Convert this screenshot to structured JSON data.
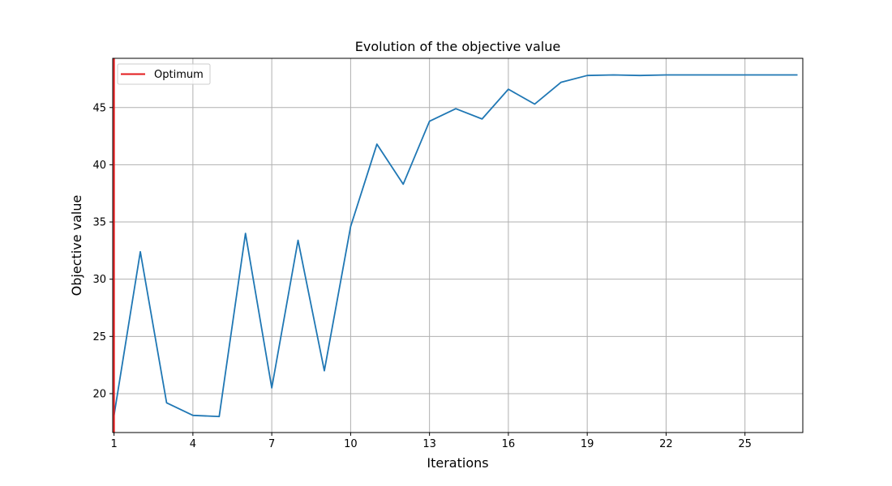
{
  "chart_data": {
    "type": "line",
    "title": "Evolution of the objective value",
    "xlabel": "Iterations",
    "ylabel": "Objective value",
    "xlim": [
      0.95,
      27.2
    ],
    "ylim": [
      16.6,
      49.3
    ],
    "xticks": [
      1,
      4,
      7,
      10,
      13,
      16,
      19,
      22,
      25
    ],
    "yticks": [
      20,
      25,
      30,
      35,
      40,
      45
    ],
    "grid": true,
    "legend_position": "upper-left",
    "series": [
      {
        "name": "",
        "color": "#1f77b4",
        "x": [
          1,
          2,
          3,
          4,
          5,
          6,
          7,
          8,
          9,
          10,
          11,
          12,
          13,
          14,
          15,
          16,
          17,
          18,
          19,
          20,
          21,
          22,
          23,
          24,
          25,
          26,
          27
        ],
        "y": [
          18.1,
          32.4,
          19.2,
          18.1,
          18.0,
          34.0,
          20.5,
          33.4,
          22.0,
          34.6,
          41.8,
          38.3,
          43.8,
          44.9,
          44.0,
          46.6,
          45.3,
          47.2,
          47.8,
          47.85,
          47.8,
          47.85,
          47.85,
          47.85,
          47.85,
          47.85,
          47.85
        ]
      }
    ],
    "vlines": [
      {
        "name": "Optimum",
        "x": 1,
        "color": "#e31a1c"
      }
    ]
  }
}
